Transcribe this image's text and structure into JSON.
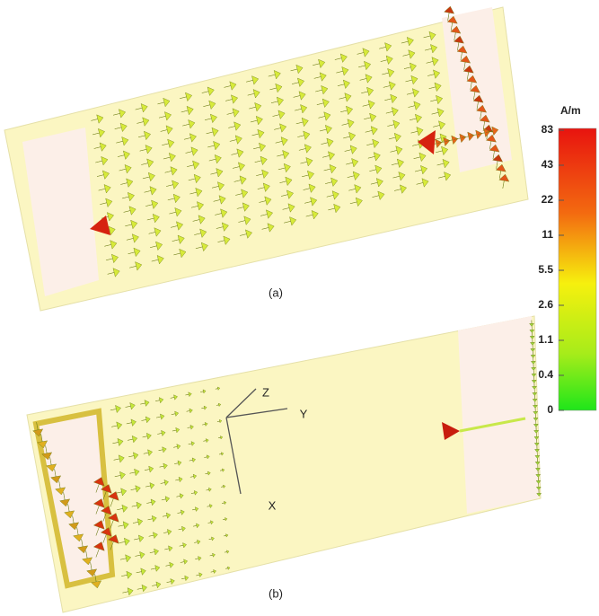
{
  "figure": {
    "panels": [
      {
        "label": "(a)"
      },
      {
        "label": "(b)"
      }
    ],
    "axes": {
      "z": "Z",
      "y": "Y",
      "x": "X"
    },
    "colorbar": {
      "unit": "A/m",
      "labels": [
        "83",
        "43",
        "22",
        "11",
        "5.5",
        "2.6",
        "1.1",
        "0.4",
        "0"
      ]
    }
  }
}
